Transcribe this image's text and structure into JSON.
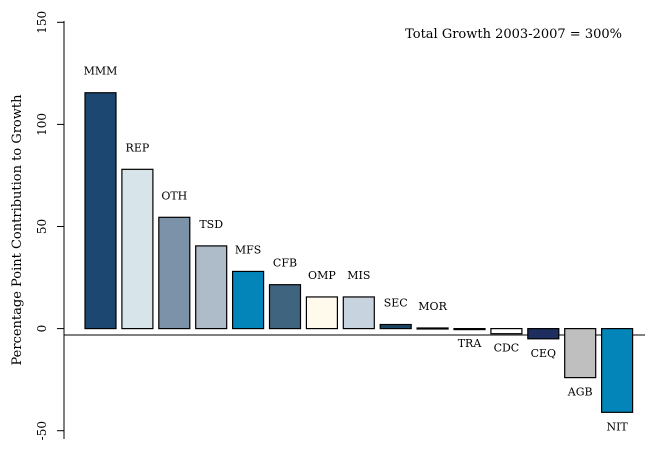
{
  "chart_data": {
    "type": "bar",
    "title": "",
    "xlabel": "",
    "ylabel": "Percentage Point Contribution to Growth",
    "annotation": "Total Growth 2003-2007 = 300%",
    "ylim": [
      -57,
      157
    ],
    "yticks": [
      150,
      100,
      50,
      0,
      -50
    ],
    "ytick_labels": [
      "150",
      "100",
      "50",
      "0",
      "-50"
    ],
    "grid": false,
    "categories": [
      "MMM",
      "REP",
      "OTH",
      "TSD",
      "MFS",
      "CFB",
      "OMP",
      "MIS",
      "SEC",
      "MOR",
      "TRA",
      "CDC",
      "CEQ",
      "AGB",
      "NIT"
    ],
    "values": [
      115.5,
      78,
      54.5,
      40.5,
      28,
      21.5,
      15.5,
      15.5,
      2,
      0.3,
      -0.3,
      -2.5,
      -5,
      -24,
      -41
    ],
    "colors": [
      "#1c4770",
      "#d7e4ea",
      "#7b92a8",
      "#aebbc8",
      "#0485b9",
      "#3e6480",
      "#fffaeb",
      "#c7d3de",
      "#1b4767",
      "#ffffff",
      "#ffffff",
      "#ffffff",
      "#1e2f5f",
      "#bfbfbf",
      "#0485b9"
    ]
  }
}
